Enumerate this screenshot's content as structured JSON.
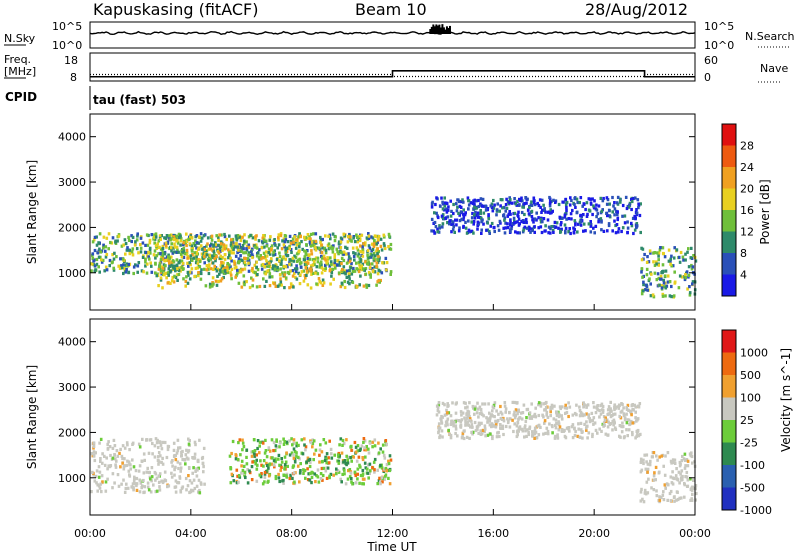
{
  "header": {
    "station": "Kapuskasing (fitACF)",
    "beam": "Beam 10",
    "date": "28/Aug/2012"
  },
  "noise_panel": {
    "left_label": "N.Sky",
    "left_top_tick": "10^5",
    "left_bottom_tick": "10^0",
    "right_top_tick": "10^5",
    "right_bottom_tick": "10^0",
    "right_label": "N.Search"
  },
  "freq_panel": {
    "left_label_1": "Freq.",
    "left_label_2": "[MHz]",
    "left_top_tick": "18",
    "left_bottom_tick": "8",
    "right_top_tick": "60",
    "right_bottom_tick": "0",
    "right_label": "Nave"
  },
  "cpid": {
    "label": "CPID",
    "mode": "tau (fast) 503"
  },
  "axes": {
    "y_label": "Slant Range [km]",
    "x_label": "Time UT",
    "x_ticks": [
      "00:00",
      "04:00",
      "08:00",
      "12:00",
      "16:00",
      "20:00",
      "00:00"
    ],
    "y_ticks": [
      "1000",
      "2000",
      "3000",
      "4000"
    ]
  },
  "power_scale": {
    "label": "Power [dB]",
    "ticks": [
      "4",
      "8",
      "12",
      "16",
      "20",
      "24",
      "28"
    ],
    "colors": [
      "#1a1ae6",
      "#2a50b8",
      "#2e8a6a",
      "#6fbf3a",
      "#e8d020",
      "#f0a020",
      "#ee5a10",
      "#e01010"
    ]
  },
  "velocity_scale": {
    "label": "Velocity [m s^-1]",
    "ticks": [
      "1000",
      "500",
      "100",
      "25",
      "-25",
      "-100",
      "-500",
      "-1000"
    ],
    "colors": [
      "#2030c0",
      "#2a60b0",
      "#2e8a50",
      "#6ccc3a",
      "#c8c8c0",
      "#f0a030",
      "#ee6a10",
      "#e01818"
    ]
  },
  "chart_data": {
    "type": "heatmap",
    "title": "Kapuskasing (fitACF) Beam 10 28/Aug/2012",
    "xlabel": "Time UT",
    "ylabel": "Slant Range [km]",
    "xlim": [
      "00:00",
      "24:00"
    ],
    "ylim": [
      180,
      4500
    ],
    "frequency_mhz": [
      {
        "from": "00:00",
        "to": "12:00",
        "value": 10.5
      },
      {
        "from": "12:00",
        "to": "22:00",
        "value": 14
      },
      {
        "from": "22:00",
        "to": "24:00",
        "value": 10.5
      }
    ],
    "nave": [
      {
        "from": "00:00",
        "to": "12:00",
        "value": 23
      },
      {
        "from": "12:00",
        "to": "22:00",
        "value": 16
      },
      {
        "from": "22:00",
        "to": "24:00",
        "value": 23
      }
    ],
    "power_regions": [
      {
        "t0": 0.0,
        "t1": 11.9,
        "r0": 1000,
        "r1": 1900,
        "level": 12
      },
      {
        "t0": 2.5,
        "t1": 11.5,
        "r0": 700,
        "r1": 1900,
        "level": 16
      },
      {
        "t0": 13.5,
        "t1": 21.8,
        "r0": 1900,
        "r1": 2700,
        "level": 4
      },
      {
        "t0": 21.8,
        "t1": 24.0,
        "r0": 500,
        "r1": 1600,
        "level": 12
      }
    ],
    "velocity_regions": [
      {
        "t0": 0.0,
        "t1": 4.5,
        "r0": 700,
        "r1": 1900,
        "velocity": 0
      },
      {
        "t0": 5.5,
        "t1": 11.9,
        "r0": 900,
        "r1": 1900,
        "velocity": 80
      },
      {
        "t0": 13.7,
        "t1": 21.8,
        "r0": 1900,
        "r1": 2700,
        "velocity": 0
      },
      {
        "t0": 21.8,
        "t1": 24.0,
        "r0": 500,
        "r1": 1600,
        "velocity": 0
      }
    ]
  }
}
